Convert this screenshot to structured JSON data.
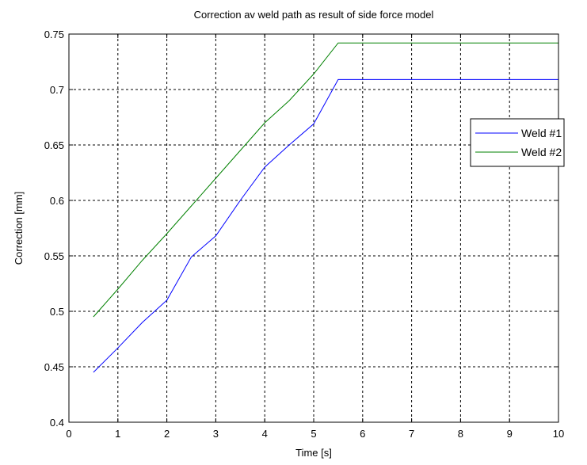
{
  "chart_data": {
    "type": "line",
    "title": "Correction av weld path as result of side force model",
    "xlabel": "Time [s]",
    "ylabel": "Correction [mm]",
    "xlim": [
      0,
      10
    ],
    "ylim": [
      0.4,
      0.75
    ],
    "xticks": [
      "0",
      "1",
      "2",
      "3",
      "4",
      "5",
      "6",
      "7",
      "8",
      "9",
      "10"
    ],
    "yticks": [
      "0.4",
      "0.45",
      "0.5",
      "0.55",
      "0.6",
      "0.65",
      "0.7",
      "0.75"
    ],
    "grid": true,
    "legend_position": "right",
    "series": [
      {
        "name": "Weld #1",
        "color": "#0000ff",
        "x": [
          0.5,
          1.0,
          1.5,
          2.0,
          2.5,
          3.0,
          3.5,
          4.0,
          4.5,
          5.0,
          5.5,
          10.0
        ],
        "y": [
          0.445,
          0.467,
          0.49,
          0.51,
          0.549,
          0.568,
          0.6,
          0.63,
          0.65,
          0.669,
          0.709,
          0.709
        ]
      },
      {
        "name": "Weld #2",
        "color": "#008000",
        "x": [
          0.5,
          1.0,
          1.5,
          2.0,
          2.5,
          3.0,
          3.5,
          4.0,
          4.5,
          5.0,
          5.5,
          10.0
        ],
        "y": [
          0.495,
          0.52,
          0.546,
          0.57,
          0.595,
          0.62,
          0.645,
          0.67,
          0.69,
          0.714,
          0.742,
          0.742
        ]
      }
    ]
  }
}
